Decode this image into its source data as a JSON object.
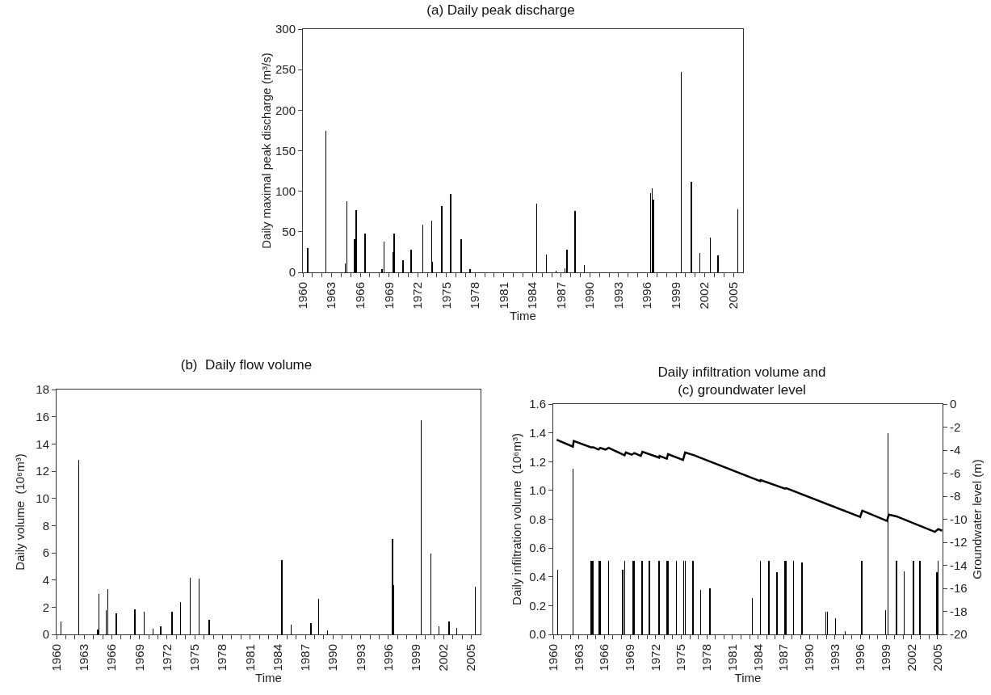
{
  "chart_data": [
    {
      "type": "bar",
      "title": "(a) Daily peak discharge",
      "xlabel": "Time",
      "ylabel": "Daily maximal peak discharge (m³/s)",
      "series": [
        {
          "color": "#000000",
          "x": [
            1960.5,
            1962.4,
            1964.45,
            1964.6,
            1965.4,
            1965.55,
            1966.5,
            1968.25,
            1968.5,
            1969.4,
            1969.55,
            1970.45,
            1971.3,
            1972.55,
            1973.45,
            1973.55,
            1974.5,
            1975.45,
            1976.55,
            1977.45,
            1984.45,
            1985.45,
            1986.45,
            1987.4,
            1987.6,
            1988.45,
            1989.4,
            1996.35,
            1996.5,
            1996.65,
            1999.55,
            2000.6,
            2001.5,
            2002.6,
            2003.4,
            2005.45
          ],
          "values": [
            30,
            174,
            11,
            88,
            41,
            77,
            48,
            4,
            38,
            25,
            48,
            15,
            28,
            59,
            64,
            13,
            82,
            97,
            41,
            4,
            85,
            22,
            2,
            5,
            28,
            76,
            9,
            98,
            104,
            90,
            247,
            112,
            24,
            43,
            21,
            78
          ]
        }
      ],
      "xlim": [
        1960,
        2006
      ],
      "ylim": [
        0,
        300
      ],
      "yticks": [
        0,
        50,
        100,
        150,
        200,
        250,
        300
      ],
      "xticks": [
        1960,
        {
          "value": 1961,
          "label": null
        },
        {
          "value": 1962,
          "label": null
        },
        1963,
        {
          "value": 1964,
          "label": null
        },
        {
          "value": 1965,
          "label": null
        },
        1966,
        {
          "value": 1967,
          "label": null
        },
        {
          "value": 1968,
          "label": null
        },
        1969,
        {
          "value": 1970,
          "label": null
        },
        {
          "value": 1971,
          "label": null
        },
        1972,
        {
          "value": 1973,
          "label": null
        },
        {
          "value": 1974,
          "label": null
        },
        1975,
        {
          "value": 1976,
          "label": null
        },
        {
          "value": 1977,
          "label": null
        },
        1978,
        {
          "value": 1979,
          "label": null
        },
        {
          "value": 1980,
          "label": null
        },
        1981,
        {
          "value": 1982,
          "label": null
        },
        {
          "value": 1983,
          "label": null
        },
        1984,
        {
          "value": 1985,
          "label": null
        },
        {
          "value": 1986,
          "label": null
        },
        1987,
        {
          "value": 1988,
          "label": null
        },
        {
          "value": 1989,
          "label": null
        },
        1990,
        {
          "value": 1991,
          "label": null
        },
        {
          "value": 1992,
          "label": null
        },
        1993,
        {
          "value": 1994,
          "label": null
        },
        {
          "value": 1995,
          "label": null
        },
        1996,
        {
          "value": 1997,
          "label": null
        },
        {
          "value": 1998,
          "label": null
        },
        1999,
        {
          "value": 2000,
          "label": null
        },
        {
          "value": 2001,
          "label": null
        },
        2002,
        {
          "value": 2003,
          "label": null
        },
        {
          "value": 2004,
          "label": null
        },
        2005
      ]
    },
    {
      "type": "bar",
      "title": "(b)  Daily flow volume",
      "xlabel": "Time",
      "ylabel": "Daily volume  (10⁶m³)",
      "series": [
        {
          "color": "#000000",
          "x": [
            1960.5,
            1962.4,
            1964.45,
            1964.6,
            1965.4,
            1965.55,
            1966.5,
            1968.5,
            1969.5,
            1970.45,
            1971.3,
            1972.55,
            1973.45,
            1974.5,
            1975.45,
            1976.55,
            1984.45,
            1985.45,
            1987.6,
            1988.45,
            1989.4,
            1996.45,
            1996.55,
            1999.55,
            2000.6,
            2001.5,
            2002.6,
            2003.4,
            2005.45
          ],
          "values": [
            0.95,
            12.85,
            0.35,
            3.0,
            1.8,
            3.35,
            1.55,
            1.85,
            1.65,
            0.4,
            0.6,
            1.65,
            2.35,
            4.15,
            4.1,
            1.05,
            5.45,
            0.7,
            0.85,
            2.6,
            0.3,
            7.0,
            3.65,
            15.75,
            5.95,
            0.6,
            0.95,
            0.45,
            3.5
          ]
        }
      ],
      "xlim": [
        1960,
        2006
      ],
      "ylim": [
        0,
        18
      ],
      "yticks": [
        0,
        2,
        4,
        6,
        8,
        10,
        12,
        14,
        16,
        18
      ],
      "xticks": [
        1960,
        {
          "value": 1961,
          "label": null
        },
        {
          "value": 1962,
          "label": null
        },
        1963,
        {
          "value": 1964,
          "label": null
        },
        {
          "value": 1965,
          "label": null
        },
        1966,
        {
          "value": 1967,
          "label": null
        },
        {
          "value": 1968,
          "label": null
        },
        1969,
        {
          "value": 1970,
          "label": null
        },
        {
          "value": 1971,
          "label": null
        },
        1972,
        {
          "value": 1973,
          "label": null
        },
        {
          "value": 1974,
          "label": null
        },
        1975,
        {
          "value": 1976,
          "label": null
        },
        {
          "value": 1977,
          "label": null
        },
        1978,
        {
          "value": 1979,
          "label": null
        },
        {
          "value": 1980,
          "label": null
        },
        1981,
        {
          "value": 1982,
          "label": null
        },
        {
          "value": 1983,
          "label": null
        },
        1984,
        {
          "value": 1985,
          "label": null
        },
        {
          "value": 1986,
          "label": null
        },
        1987,
        {
          "value": 1988,
          "label": null
        },
        {
          "value": 1989,
          "label": null
        },
        1990,
        {
          "value": 1991,
          "label": null
        },
        {
          "value": 1992,
          "label": null
        },
        1993,
        {
          "value": 1994,
          "label": null
        },
        {
          "value": 1995,
          "label": null
        },
        1996,
        {
          "value": 1997,
          "label": null
        },
        {
          "value": 1998,
          "label": null
        },
        1999,
        {
          "value": 2000,
          "label": null
        },
        {
          "value": 2001,
          "label": null
        },
        2002,
        {
          "value": 2003,
          "label": null
        },
        {
          "value": 2004,
          "label": null
        },
        2005
      ]
    },
    {
      "type": "bar",
      "title": "Daily infiltration volume and\n(c) groundwater level",
      "xlabel": "Time",
      "ylabel": "Daily infiltration volume  (10⁶m³)",
      "y2label": "Groundwater level (m)",
      "series": [
        {
          "color": "#000000",
          "x": [
            1960.5,
            1962.3,
            1964.4,
            1964.55,
            1964.65,
            1965.4,
            1965.55,
            1966.5,
            1968.15,
            1968.4,
            1969.35,
            1969.5,
            1970.4,
            1971.25,
            1972.4,
            1973.35,
            1973.45,
            1974.4,
            1975.3,
            1975.45,
            1976.35,
            1977.25,
            1978.35,
            1983.3,
            1984.25,
            1985.25,
            1986.2,
            1987.15,
            1987.3,
            1988.15,
            1989.15,
            1991.95,
            1992.1,
            1993.05,
            1994.2,
            1996.1,
            1996.2,
            1998.95,
            1999.2,
            2000.2,
            2001.1,
            2002.2,
            2002.95,
            2004.95,
            2005.05
          ],
          "values": [
            0.45,
            1.15,
            0.51,
            0.51,
            0.51,
            0.51,
            0.51,
            0.51,
            0.45,
            0.51,
            0.51,
            0.51,
            0.51,
            0.51,
            0.51,
            0.51,
            0.51,
            0.51,
            0.51,
            0.51,
            0.51,
            0.31,
            0.32,
            0.25,
            0.51,
            0.51,
            0.43,
            0.51,
            0.51,
            0.51,
            0.5,
            0.16,
            0.16,
            0.11,
            0.02,
            0.51,
            0.51,
            0.17,
            1.4,
            0.51,
            0.44,
            0.51,
            0.51,
            0.43,
            0.51
          ]
        },
        {
          "type": "line",
          "axis": "y2",
          "color": "#000000",
          "x": [
            1960.4,
            1962.3,
            1962.4,
            1964.4,
            1964.7,
            1965.3,
            1965.5,
            1966.1,
            1966.5,
            1968.35,
            1968.5,
            1969.2,
            1969.5,
            1970.25,
            1970.45,
            1972.4,
            1972.45,
            1973.3,
            1973.45,
            1975.2,
            1975.45,
            1976.5,
            1984.25,
            1984.3,
            1987.15,
            1987.3,
            1995.95,
            1996.2,
            1999.1,
            1999.3,
            2000.2,
            2004.7,
            2005.1,
            2005.55
          ],
          "values": [
            -3.1,
            -3.7,
            -3.2,
            -3.75,
            -3.75,
            -3.95,
            -3.8,
            -3.95,
            -3.8,
            -4.45,
            -4.2,
            -4.4,
            -4.25,
            -4.5,
            -4.15,
            -4.65,
            -4.5,
            -4.75,
            -4.35,
            -4.85,
            -4.2,
            -4.45,
            -6.7,
            -6.6,
            -7.35,
            -7.3,
            -9.8,
            -9.25,
            -10.15,
            -9.6,
            -9.75,
            -11.1,
            -10.85,
            -11.0
          ]
        }
      ],
      "xlim": [
        1960,
        2005.6
      ],
      "ylim": [
        0,
        1.6
      ],
      "yticks": [
        {
          "value": 0,
          "label": "0.0"
        },
        0.2,
        0.4,
        0.6,
        0.8,
        {
          "value": 1,
          "label": "1.0"
        },
        1.2,
        1.4,
        1.6
      ],
      "y2lim": [
        -20,
        0
      ],
      "y2ticks": [
        -20,
        -18,
        -16,
        -14,
        -12,
        -10,
        -8,
        -6,
        -4,
        -2,
        0
      ],
      "xticks": [
        1960,
        {
          "value": 1961,
          "label": null
        },
        {
          "value": 1962,
          "label": null
        },
        1963,
        {
          "value": 1964,
          "label": null
        },
        {
          "value": 1965,
          "label": null
        },
        1966,
        {
          "value": 1967,
          "label": null
        },
        {
          "value": 1968,
          "label": null
        },
        1969,
        {
          "value": 1970,
          "label": null
        },
        {
          "value": 1971,
          "label": null
        },
        1972,
        {
          "value": 1973,
          "label": null
        },
        {
          "value": 1974,
          "label": null
        },
        1975,
        {
          "value": 1976,
          "label": null
        },
        {
          "value": 1977,
          "label": null
        },
        1978,
        {
          "value": 1979,
          "label": null
        },
        {
          "value": 1980,
          "label": null
        },
        1981,
        {
          "value": 1982,
          "label": null
        },
        {
          "value": 1983,
          "label": null
        },
        1984,
        {
          "value": 1985,
          "label": null
        },
        {
          "value": 1986,
          "label": null
        },
        1987,
        {
          "value": 1988,
          "label": null
        },
        {
          "value": 1989,
          "label": null
        },
        1990,
        {
          "value": 1991,
          "label": null
        },
        {
          "value": 1992,
          "label": null
        },
        1993,
        {
          "value": 1994,
          "label": null
        },
        {
          "value": 1995,
          "label": null
        },
        1996,
        {
          "value": 1997,
          "label": null
        },
        {
          "value": 1998,
          "label": null
        },
        1999,
        {
          "value": 2000,
          "label": null
        },
        {
          "value": 2001,
          "label": null
        },
        2002,
        {
          "value": 2003,
          "label": null
        },
        {
          "value": 2004,
          "label": null
        },
        2005
      ]
    }
  ]
}
